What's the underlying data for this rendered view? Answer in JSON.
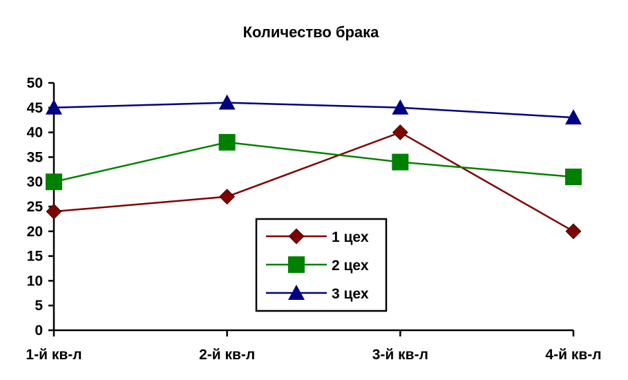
{
  "chart_data": {
    "type": "line",
    "title": "Количество брака",
    "xlabel": "",
    "ylabel": "",
    "categories": [
      "1-й кв-л",
      "2-й кв-л",
      "3-й кв-л",
      "4-й кв-л"
    ],
    "ylim": [
      0,
      50
    ],
    "yticks": [
      0,
      5,
      10,
      15,
      20,
      25,
      30,
      35,
      40,
      45,
      50
    ],
    "yticklabels": [
      "0",
      "5",
      "10",
      "15",
      "20",
      "25",
      "30",
      "35",
      "40",
      "45",
      "50"
    ],
    "grid": false,
    "legend_position": "center-bottom",
    "series": [
      {
        "name": "1 цех",
        "values": [
          24,
          27,
          40,
          20
        ],
        "color": "#800000",
        "marker": "diamond"
      },
      {
        "name": "2 цех",
        "values": [
          30,
          38,
          34,
          31
        ],
        "color": "#008000",
        "marker": "square"
      },
      {
        "name": "3 цех",
        "values": [
          45,
          46,
          45,
          43
        ],
        "color": "#000080",
        "marker": "triangle"
      }
    ]
  }
}
